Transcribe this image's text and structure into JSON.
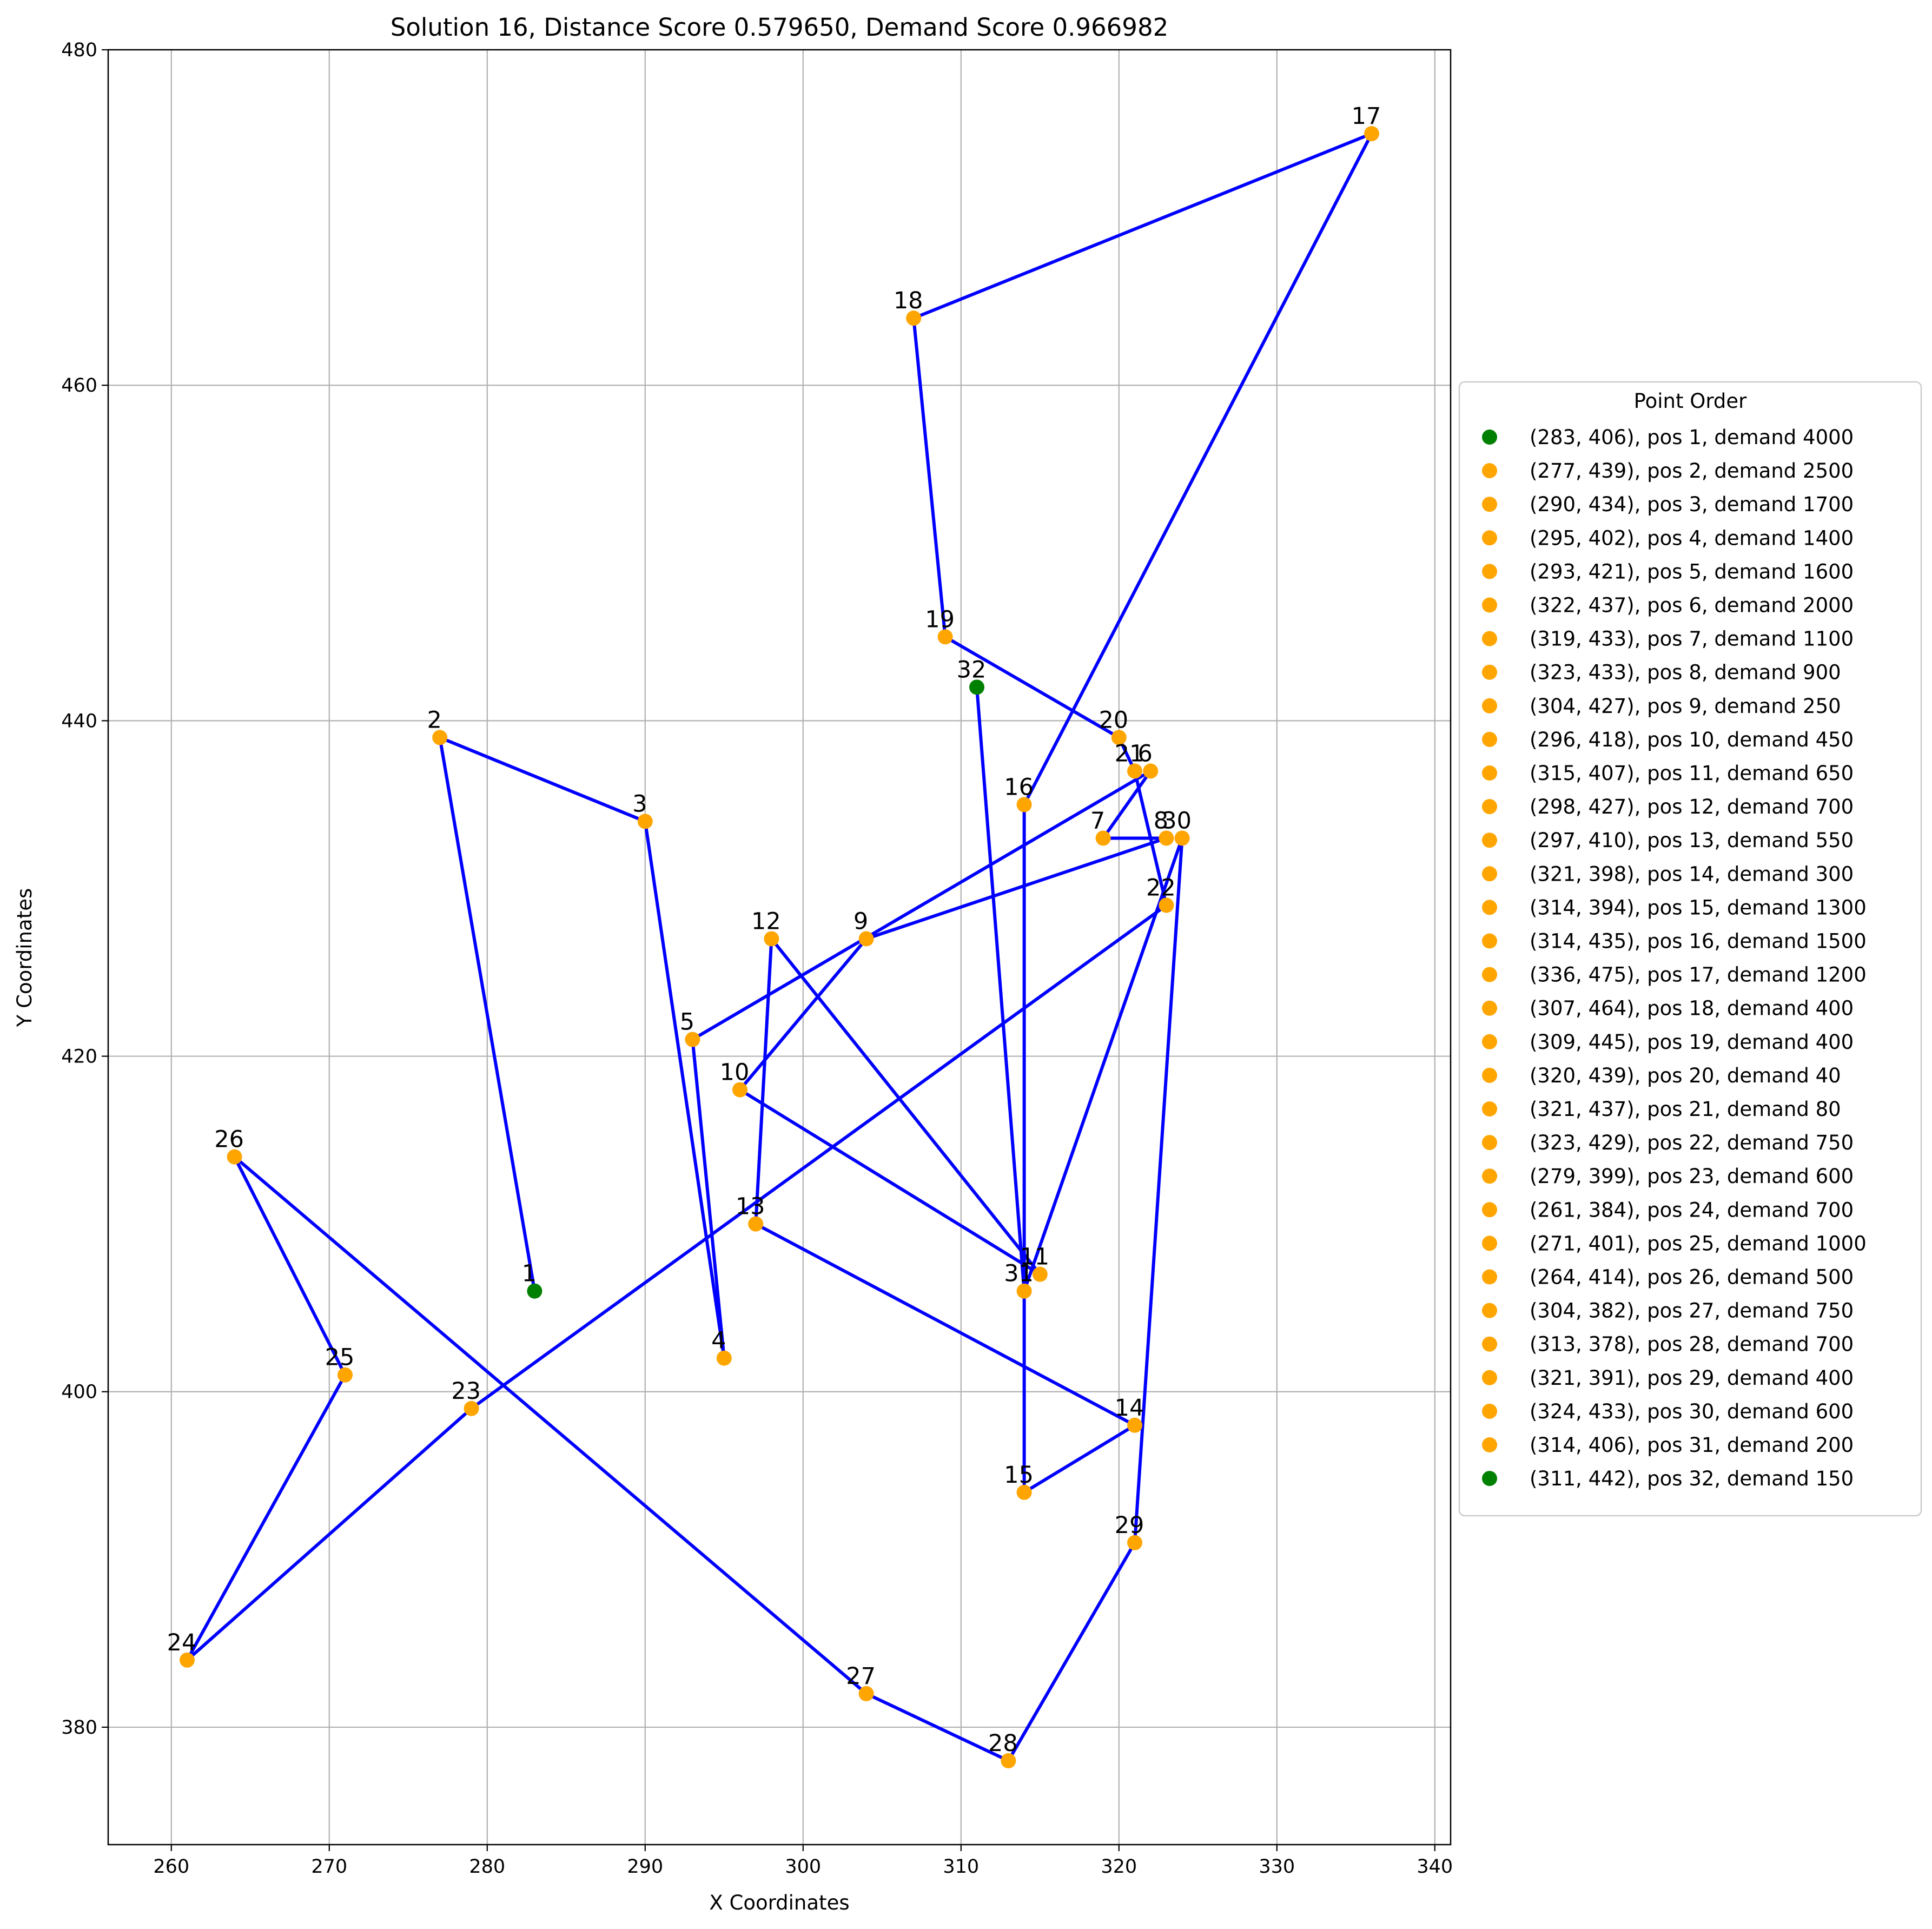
{
  "chart_data": {
    "type": "scatter",
    "title": "Solution 16, Distance Score 0.579650, Demand Score  0.966982",
    "xlabel": "X Coordinates",
    "ylabel": "Y Coordinates",
    "xlim": [
      256,
      341
    ],
    "ylim": [
      373,
      480
    ],
    "xticks": [
      260,
      270,
      280,
      290,
      300,
      310,
      320,
      330,
      340
    ],
    "yticks": [
      380,
      400,
      420,
      440,
      460,
      480
    ],
    "grid": true,
    "legend": {
      "title": "Point Order",
      "placement": "right-outside"
    },
    "colors": {
      "route": "#0000ff",
      "depot": "#008000",
      "stop": "#ffa500",
      "grid": "#b0b0b0"
    },
    "points": [
      {
        "x": 283,
        "y": 406,
        "pos": 1,
        "demand": 4000,
        "depot": true,
        "label": "1",
        "legend": "(283, 406), pos 1, demand 4000"
      },
      {
        "x": 277,
        "y": 439,
        "pos": 2,
        "demand": 2500,
        "depot": false,
        "label": "2",
        "legend": "(277, 439), pos 2, demand 2500"
      },
      {
        "x": 290,
        "y": 434,
        "pos": 3,
        "demand": 1700,
        "depot": false,
        "label": "3",
        "legend": "(290, 434), pos 3, demand 1700"
      },
      {
        "x": 295,
        "y": 402,
        "pos": 4,
        "demand": 1400,
        "depot": false,
        "label": "4",
        "legend": "(295, 402), pos 4, demand 1400"
      },
      {
        "x": 293,
        "y": 421,
        "pos": 5,
        "demand": 1600,
        "depot": false,
        "label": "5",
        "legend": "(293, 421), pos 5, demand 1600"
      },
      {
        "x": 322,
        "y": 437,
        "pos": 6,
        "demand": 2000,
        "depot": false,
        "label": "6",
        "legend": "(322, 437), pos 6, demand 2000"
      },
      {
        "x": 319,
        "y": 433,
        "pos": 7,
        "demand": 1100,
        "depot": false,
        "label": "7",
        "legend": "(319, 433), pos 7, demand 1100"
      },
      {
        "x": 323,
        "y": 433,
        "pos": 8,
        "demand": 900,
        "depot": false,
        "label": "8",
        "legend": "(323, 433), pos 8, demand 900"
      },
      {
        "x": 304,
        "y": 427,
        "pos": 9,
        "demand": 250,
        "depot": false,
        "label": "9",
        "legend": "(304, 427), pos 9, demand 250"
      },
      {
        "x": 296,
        "y": 418,
        "pos": 10,
        "demand": 450,
        "depot": false,
        "label": "10",
        "legend": "(296, 418), pos 10, demand 450"
      },
      {
        "x": 315,
        "y": 407,
        "pos": 11,
        "demand": 650,
        "depot": false,
        "label": "11",
        "legend": "(315, 407), pos 11, demand 650"
      },
      {
        "x": 298,
        "y": 427,
        "pos": 12,
        "demand": 700,
        "depot": false,
        "label": "12",
        "legend": "(298, 427), pos 12, demand 700"
      },
      {
        "x": 297,
        "y": 410,
        "pos": 13,
        "demand": 550,
        "depot": false,
        "label": "13",
        "legend": "(297, 410), pos 13, demand 550"
      },
      {
        "x": 321,
        "y": 398,
        "pos": 14,
        "demand": 300,
        "depot": false,
        "label": "14",
        "legend": "(321, 398), pos 14, demand 300"
      },
      {
        "x": 314,
        "y": 394,
        "pos": 15,
        "demand": 1300,
        "depot": false,
        "label": "15",
        "legend": "(314, 394), pos 15, demand 1300"
      },
      {
        "x": 314,
        "y": 435,
        "pos": 16,
        "demand": 1500,
        "depot": false,
        "label": "16",
        "legend": "(314, 435), pos 16, demand 1500"
      },
      {
        "x": 336,
        "y": 475,
        "pos": 17,
        "demand": 1200,
        "depot": false,
        "label": "17",
        "legend": "(336, 475), pos 17, demand 1200"
      },
      {
        "x": 307,
        "y": 464,
        "pos": 18,
        "demand": 400,
        "depot": false,
        "label": "18",
        "legend": "(307, 464), pos 18, demand 400"
      },
      {
        "x": 309,
        "y": 445,
        "pos": 19,
        "demand": 400,
        "depot": false,
        "label": "19",
        "legend": "(309, 445), pos 19, demand 400"
      },
      {
        "x": 320,
        "y": 439,
        "pos": 20,
        "demand": 40,
        "depot": false,
        "label": "20",
        "legend": "(320, 439), pos 20, demand 40"
      },
      {
        "x": 321,
        "y": 437,
        "pos": 21,
        "demand": 80,
        "depot": false,
        "label": "21",
        "legend": "(321, 437), pos 21, demand 80"
      },
      {
        "x": 323,
        "y": 429,
        "pos": 22,
        "demand": 750,
        "depot": false,
        "label": "22",
        "legend": "(323, 429), pos 22, demand 750"
      },
      {
        "x": 279,
        "y": 399,
        "pos": 23,
        "demand": 600,
        "depot": false,
        "label": "23",
        "legend": "(279, 399), pos 23, demand 600"
      },
      {
        "x": 261,
        "y": 384,
        "pos": 24,
        "demand": 700,
        "depot": false,
        "label": "24",
        "legend": "(261, 384), pos 24, demand 700"
      },
      {
        "x": 271,
        "y": 401,
        "pos": 25,
        "demand": 1000,
        "depot": false,
        "label": "25",
        "legend": "(271, 401), pos 25, demand 1000"
      },
      {
        "x": 264,
        "y": 414,
        "pos": 26,
        "demand": 500,
        "depot": false,
        "label": "26",
        "legend": "(264, 414), pos 26, demand 500"
      },
      {
        "x": 304,
        "y": 382,
        "pos": 27,
        "demand": 750,
        "depot": false,
        "label": "27",
        "legend": "(304, 382), pos 27, demand 750"
      },
      {
        "x": 313,
        "y": 378,
        "pos": 28,
        "demand": 700,
        "depot": false,
        "label": "28",
        "legend": "(313, 378), pos 28, demand 700"
      },
      {
        "x": 321,
        "y": 391,
        "pos": 29,
        "demand": 400,
        "depot": false,
        "label": "29",
        "legend": "(321, 391), pos 29, demand 400"
      },
      {
        "x": 324,
        "y": 433,
        "pos": 30,
        "demand": 600,
        "depot": false,
        "label": "30",
        "legend": "(324, 433), pos 30, demand 600"
      },
      {
        "x": 314,
        "y": 406,
        "pos": 31,
        "demand": 200,
        "depot": false,
        "label": "31",
        "legend": "(314, 406), pos 31, demand 200"
      },
      {
        "x": 311,
        "y": 442,
        "pos": 32,
        "demand": 150,
        "depot": true,
        "label": "32",
        "legend": "(311, 442), pos 32, demand 150"
      }
    ]
  }
}
